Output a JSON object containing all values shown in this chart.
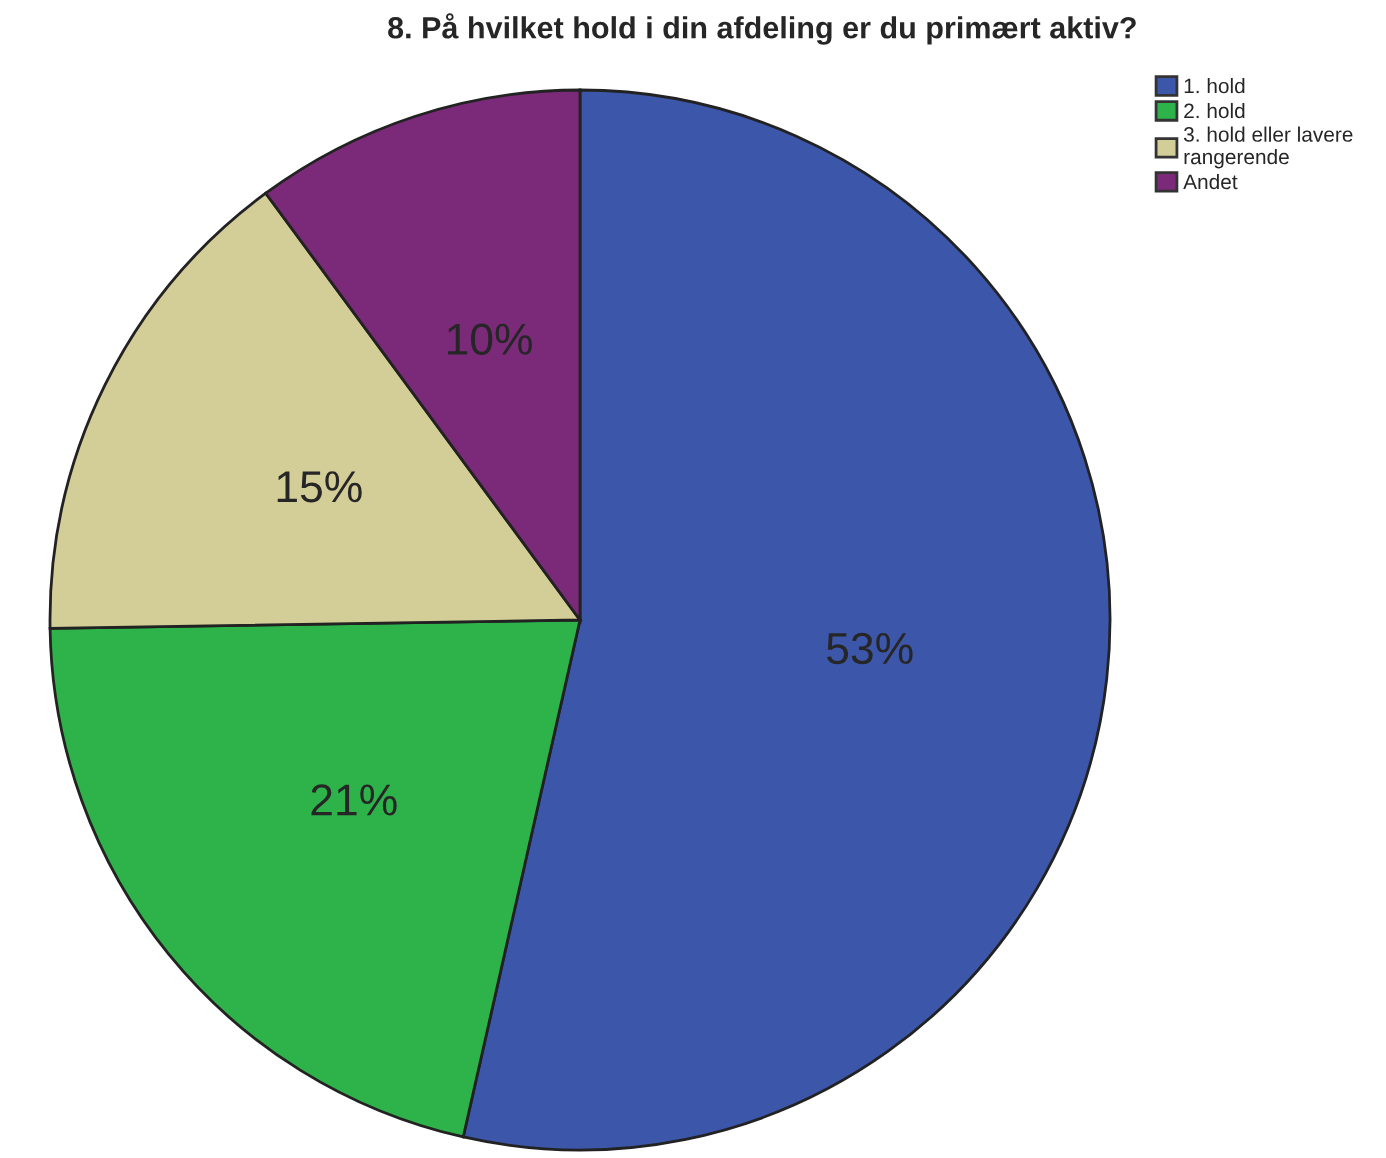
{
  "chart_data": {
    "type": "pie",
    "title": "8. På hvilket hold i din afdeling er du primært aktiv?",
    "categories": [
      "1. hold",
      "2. hold",
      "3. hold eller lavere\nrangerende",
      "Andet"
    ],
    "values": [
      53,
      21,
      15,
      10
    ],
    "colors": [
      "#3c56aa",
      "#2db34a",
      "#d3cd97",
      "#7b2a7a"
    ],
    "value_labels": [
      "53%",
      "21%",
      "15%",
      "10%"
    ],
    "legend": "top right"
  }
}
